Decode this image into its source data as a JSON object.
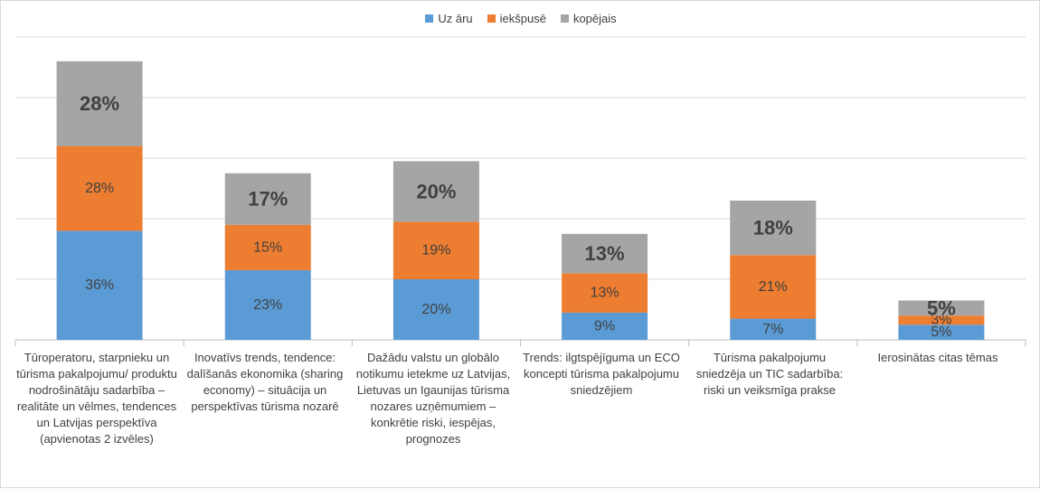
{
  "chart_data": {
    "type": "bar",
    "stacked": true,
    "title": "",
    "xlabel": "",
    "ylabel": "",
    "ylim": [
      0,
      100
    ],
    "grid": true,
    "legend_position": "top",
    "categories": [
      "Tūroperatoru, starpnieku un tūrisma pakalpojumu/ produktu nodrošinātāju sadarbība – realitāte un vēlmes, tendences un Latvijas perspektīva (apvienotas 2 izvēles)",
      "Inovatīvs trends, tendence: dalīšanās ekonomika (sharing economy) – situācija un perspektīvas tūrisma nozarē",
      "Dažādu valstu un globālo notikumu ietekme uz Latvijas, Lietuvas un Igaunijas tūrisma nozares uzņēmumiem – konkrētie riski, iespējas, prognozes",
      "Trends: ilgtspējīguma un ECO koncepti tūrisma pakalpojumu sniedzējiem",
      "Tūrisma pakalpojumu sniedzēja un TIC sadarbība: riski un veiksmīga prakse",
      "Ierosinātas citas tēmas"
    ],
    "series": [
      {
        "name": "Uz āru",
        "color": "#5b9bd5",
        "values": [
          36,
          23,
          20,
          9,
          7,
          5
        ],
        "labels": [
          "36%",
          "23%",
          "20%",
          "9%",
          "7%",
          "5%"
        ]
      },
      {
        "name": "iekšpusē",
        "color": "#ed7d31",
        "values": [
          28,
          15,
          19,
          13,
          21,
          3
        ],
        "labels": [
          "28%",
          "15%",
          "19%",
          "13%",
          "21%",
          "3%"
        ]
      },
      {
        "name": "kopējais",
        "color": "#a5a5a5",
        "values": [
          28,
          17,
          20,
          13,
          18,
          5
        ],
        "labels": [
          "28%",
          "17%",
          "20%",
          "13%",
          "18%",
          "5%"
        ]
      }
    ]
  }
}
